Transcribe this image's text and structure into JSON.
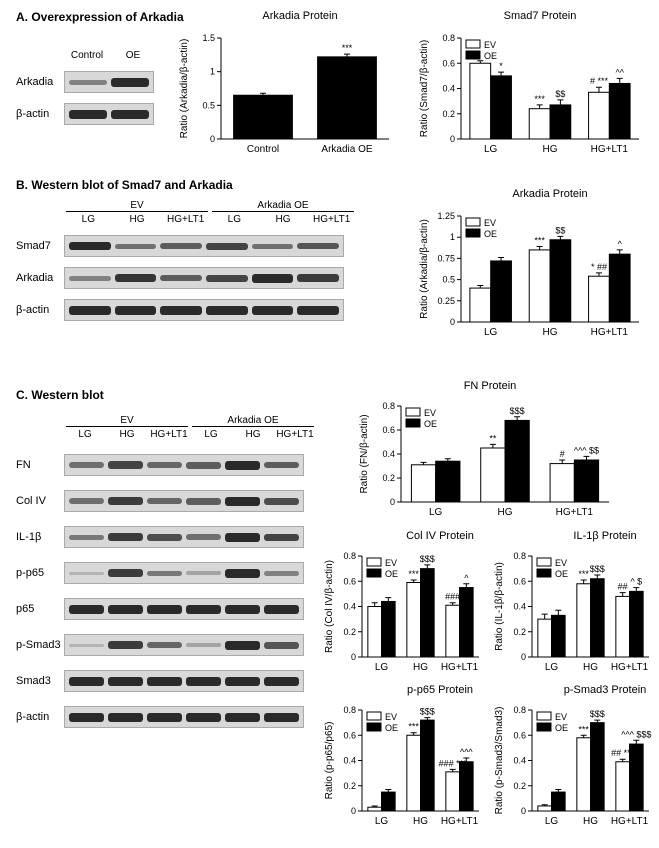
{
  "sectionA": {
    "title": "A. Overexpression of Arkadia",
    "blot": {
      "lanes": [
        "Control",
        "OE"
      ],
      "rows": [
        {
          "label": "Arkadia",
          "bands": [
            {
              "h": 5,
              "op": 0.5
            },
            {
              "h": 9,
              "op": 1
            }
          ]
        },
        {
          "label": "β-actin",
          "bands": [
            {
              "h": 9,
              "op": 1
            },
            {
              "h": 9,
              "op": 1
            }
          ]
        }
      ]
    },
    "chart1": {
      "title": "Arkadia Protein",
      "ylabel": "Ratio (Arkadia/β-actin)",
      "ylim": [
        0,
        1.5
      ],
      "ytick": 0.5,
      "categories": [
        "Control",
        "Arkadia OE"
      ],
      "bars": [
        [
          0.65
        ],
        [
          1.22
        ]
      ],
      "colors": [
        "#000000"
      ],
      "errors": [
        [
          0.03
        ],
        [
          0.04
        ]
      ],
      "sigs": [
        [],
        [
          "***"
        ]
      ]
    },
    "chart2": {
      "title": "Smad7 Protein",
      "ylabel": "Ratio (Smad7/β-actin)",
      "ylim": [
        0,
        0.8
      ],
      "ytick": 0.2,
      "categories": [
        "LG",
        "HG",
        "HG+LT1"
      ],
      "series": [
        "EV",
        "OE"
      ],
      "colors": [
        "#ffffff",
        "#000000"
      ],
      "bars": [
        [
          0.6,
          0.5
        ],
        [
          0.24,
          0.27
        ],
        [
          0.37,
          0.44
        ]
      ],
      "errors": [
        [
          0.02,
          0.03
        ],
        [
          0.03,
          0.04
        ],
        [
          0.04,
          0.04
        ]
      ],
      "sigs": [
        [
          "",
          "*"
        ],
        [
          "***",
          "$$"
        ],
        [
          "#  ***",
          "^^"
        ]
      ]
    }
  },
  "sectionB": {
    "title": "B. Western blot of Smad7 and Arkadia",
    "blot": {
      "groups": [
        "EV",
        "Arkadia OE"
      ],
      "lanes": [
        "LG",
        "HG",
        "HG+LT1",
        "LG",
        "HG",
        "HG+LT1"
      ],
      "rows": [
        {
          "label": "Smad7",
          "bands": [
            {
              "h": 8,
              "op": 1
            },
            {
              "h": 5,
              "op": 0.6
            },
            {
              "h": 6,
              "op": 0.7
            },
            {
              "h": 7,
              "op": 0.85
            },
            {
              "h": 5,
              "op": 0.6
            },
            {
              "h": 6,
              "op": 0.75
            }
          ]
        },
        {
          "label": "Arkadia",
          "bands": [
            {
              "h": 5,
              "op": 0.5
            },
            {
              "h": 8,
              "op": 0.95
            },
            {
              "h": 6,
              "op": 0.7
            },
            {
              "h": 7,
              "op": 0.85
            },
            {
              "h": 9,
              "op": 1
            },
            {
              "h": 8,
              "op": 0.9
            }
          ]
        },
        {
          "label": "β-actin",
          "bands": [
            {
              "h": 9,
              "op": 1
            },
            {
              "h": 9,
              "op": 1
            },
            {
              "h": 9,
              "op": 1
            },
            {
              "h": 9,
              "op": 1
            },
            {
              "h": 9,
              "op": 1
            },
            {
              "h": 9,
              "op": 1
            }
          ]
        }
      ]
    },
    "chart": {
      "title": "Arkadia Protein",
      "ylabel": "Ratio (Arkadia/β-actin)",
      "ylim": [
        0,
        1.25
      ],
      "ytick": 0.25,
      "categories": [
        "LG",
        "HG",
        "HG+LT1"
      ],
      "series": [
        "EV",
        "OE"
      ],
      "colors": [
        "#ffffff",
        "#000000"
      ],
      "bars": [
        [
          0.4,
          0.72
        ],
        [
          0.85,
          0.97
        ],
        [
          0.54,
          0.8
        ]
      ],
      "errors": [
        [
          0.03,
          0.04
        ],
        [
          0.04,
          0.04
        ],
        [
          0.04,
          0.05
        ]
      ],
      "sigs": [
        [
          "",
          ""
        ],
        [
          "***",
          "$$"
        ],
        [
          "*  ##",
          "^"
        ]
      ]
    }
  },
  "sectionC": {
    "title": "C. Western blot",
    "blot": {
      "groups": [
        "EV",
        "Arkadia OE"
      ],
      "lanes": [
        "LG",
        "HG",
        "HG+LT1",
        "LG",
        "HG",
        "HG+LT1"
      ],
      "rows": [
        {
          "label": "FN",
          "bands": [
            {
              "h": 6,
              "op": 0.6
            },
            {
              "h": 8,
              "op": 0.85
            },
            {
              "h": 6,
              "op": 0.65
            },
            {
              "h": 7,
              "op": 0.7
            },
            {
              "h": 9,
              "op": 1
            },
            {
              "h": 6,
              "op": 0.7
            }
          ]
        },
        {
          "label": "Col IV",
          "bands": [
            {
              "h": 6,
              "op": 0.6
            },
            {
              "h": 8,
              "op": 0.9
            },
            {
              "h": 6,
              "op": 0.65
            },
            {
              "h": 7,
              "op": 0.7
            },
            {
              "h": 9,
              "op": 1
            },
            {
              "h": 7,
              "op": 0.8
            }
          ]
        },
        {
          "label": "IL-1β",
          "bands": [
            {
              "h": 5,
              "op": 0.55
            },
            {
              "h": 8,
              "op": 0.9
            },
            {
              "h": 7,
              "op": 0.8
            },
            {
              "h": 6,
              "op": 0.6
            },
            {
              "h": 9,
              "op": 1
            },
            {
              "h": 7,
              "op": 0.85
            }
          ]
        },
        {
          "label": "p-p65",
          "bands": [
            {
              "h": 3,
              "op": 0.2
            },
            {
              "h": 8,
              "op": 0.9
            },
            {
              "h": 5,
              "op": 0.55
            },
            {
              "h": 4,
              "op": 0.3
            },
            {
              "h": 9,
              "op": 1
            },
            {
              "h": 5,
              "op": 0.5
            }
          ]
        },
        {
          "label": "p65",
          "bands": [
            {
              "h": 9,
              "op": 1
            },
            {
              "h": 9,
              "op": 1
            },
            {
              "h": 9,
              "op": 1
            },
            {
              "h": 9,
              "op": 1
            },
            {
              "h": 9,
              "op": 1
            },
            {
              "h": 9,
              "op": 1
            }
          ]
        },
        {
          "label": "p-Smad3",
          "bands": [
            {
              "h": 3,
              "op": 0.2
            },
            {
              "h": 8,
              "op": 0.9
            },
            {
              "h": 6,
              "op": 0.65
            },
            {
              "h": 4,
              "op": 0.3
            },
            {
              "h": 9,
              "op": 1
            },
            {
              "h": 7,
              "op": 0.75
            }
          ]
        },
        {
          "label": "Smad3",
          "bands": [
            {
              "h": 9,
              "op": 1
            },
            {
              "h": 9,
              "op": 1
            },
            {
              "h": 9,
              "op": 1
            },
            {
              "h": 9,
              "op": 1
            },
            {
              "h": 9,
              "op": 1
            },
            {
              "h": 9,
              "op": 1
            }
          ]
        },
        {
          "label": "β-actin",
          "bands": [
            {
              "h": 9,
              "op": 1
            },
            {
              "h": 9,
              "op": 1
            },
            {
              "h": 9,
              "op": 1
            },
            {
              "h": 9,
              "op": 1
            },
            {
              "h": 9,
              "op": 1
            },
            {
              "h": 9,
              "op": 1
            }
          ]
        }
      ]
    },
    "chartFN": {
      "title": "FN Protein",
      "ylabel": "Ratio (FN/β-actin)",
      "ylim": [
        0,
        0.8
      ],
      "ytick": 0.2,
      "categories": [
        "LG",
        "HG",
        "HG+LT1"
      ],
      "series": [
        "EV",
        "OE"
      ],
      "colors": [
        "#ffffff",
        "#000000"
      ],
      "bars": [
        [
          0.31,
          0.34
        ],
        [
          0.45,
          0.68
        ],
        [
          0.32,
          0.35
        ]
      ],
      "errors": [
        [
          0.02,
          0.02
        ],
        [
          0.03,
          0.03
        ],
        [
          0.03,
          0.03
        ]
      ],
      "sigs": [
        [
          "",
          ""
        ],
        [
          "**",
          "$$$"
        ],
        [
          "#",
          "^^^  $$"
        ]
      ]
    },
    "chartCol": {
      "title": "Col IV Protein",
      "ylabel": "Ratio (Col IV/β-actin)",
      "ylim": [
        0,
        0.8
      ],
      "ytick": 0.2,
      "categories": [
        "LG",
        "HG",
        "HG+LT1"
      ],
      "series": [
        "EV",
        "OE"
      ],
      "colors": [
        "#ffffff",
        "#000000"
      ],
      "bars": [
        [
          0.4,
          0.44
        ],
        [
          0.59,
          0.7
        ],
        [
          0.41,
          0.55
        ]
      ],
      "errors": [
        [
          0.03,
          0.03
        ],
        [
          0.02,
          0.03
        ],
        [
          0.02,
          0.03
        ]
      ],
      "sigs": [
        [
          "",
          ""
        ],
        [
          "***",
          "$$$"
        ],
        [
          "###",
          "^"
        ]
      ]
    },
    "chartIL": {
      "title": "IL-1β Protein",
      "ylabel": "Ratio (IL-1β/β-actin)",
      "ylim": [
        0,
        0.8
      ],
      "ytick": 0.2,
      "categories": [
        "LG",
        "HG",
        "HG+LT1"
      ],
      "series": [
        "EV",
        "OE"
      ],
      "colors": [
        "#ffffff",
        "#000000"
      ],
      "bars": [
        [
          0.3,
          0.33
        ],
        [
          0.58,
          0.62
        ],
        [
          0.48,
          0.52
        ]
      ],
      "errors": [
        [
          0.04,
          0.04
        ],
        [
          0.03,
          0.03
        ],
        [
          0.03,
          0.03
        ]
      ],
      "sigs": [
        [
          "",
          ""
        ],
        [
          "***",
          "$$$"
        ],
        [
          "##",
          "^  $"
        ]
      ]
    },
    "chartP65": {
      "title": "p-p65 Protein",
      "ylabel": "Ratio (p-p65/p65)",
      "ylim": [
        0,
        0.8
      ],
      "ytick": 0.2,
      "categories": [
        "LG",
        "HG",
        "HG+LT1"
      ],
      "series": [
        "EV",
        "OE"
      ],
      "colors": [
        "#ffffff",
        "#000000"
      ],
      "bars": [
        [
          0.03,
          0.15
        ],
        [
          0.6,
          0.72
        ],
        [
          0.31,
          0.39
        ]
      ],
      "errors": [
        [
          0.01,
          0.02
        ],
        [
          0.02,
          0.02
        ],
        [
          0.02,
          0.03
        ]
      ],
      "sigs": [
        [
          "",
          ""
        ],
        [
          "***",
          "$$$"
        ],
        [
          "###  ***",
          "^^^"
        ]
      ]
    },
    "chartSmad3": {
      "title": "p-Smad3 Protein",
      "ylabel": "Ratio (p-Smad3/Smad3)",
      "ylim": [
        0,
        0.8
      ],
      "ytick": 0.2,
      "categories": [
        "LG",
        "HG",
        "HG+LT1"
      ],
      "series": [
        "EV",
        "OE"
      ],
      "colors": [
        "#ffffff",
        "#000000"
      ],
      "bars": [
        [
          0.04,
          0.15
        ],
        [
          0.58,
          0.7
        ],
        [
          0.39,
          0.53
        ]
      ],
      "errors": [
        [
          0.01,
          0.02
        ],
        [
          0.02,
          0.02
        ],
        [
          0.02,
          0.03
        ]
      ],
      "sigs": [
        [
          "",
          ""
        ],
        [
          "***",
          "$$$"
        ],
        [
          "## ***",
          "^^^  $$$"
        ]
      ]
    }
  }
}
